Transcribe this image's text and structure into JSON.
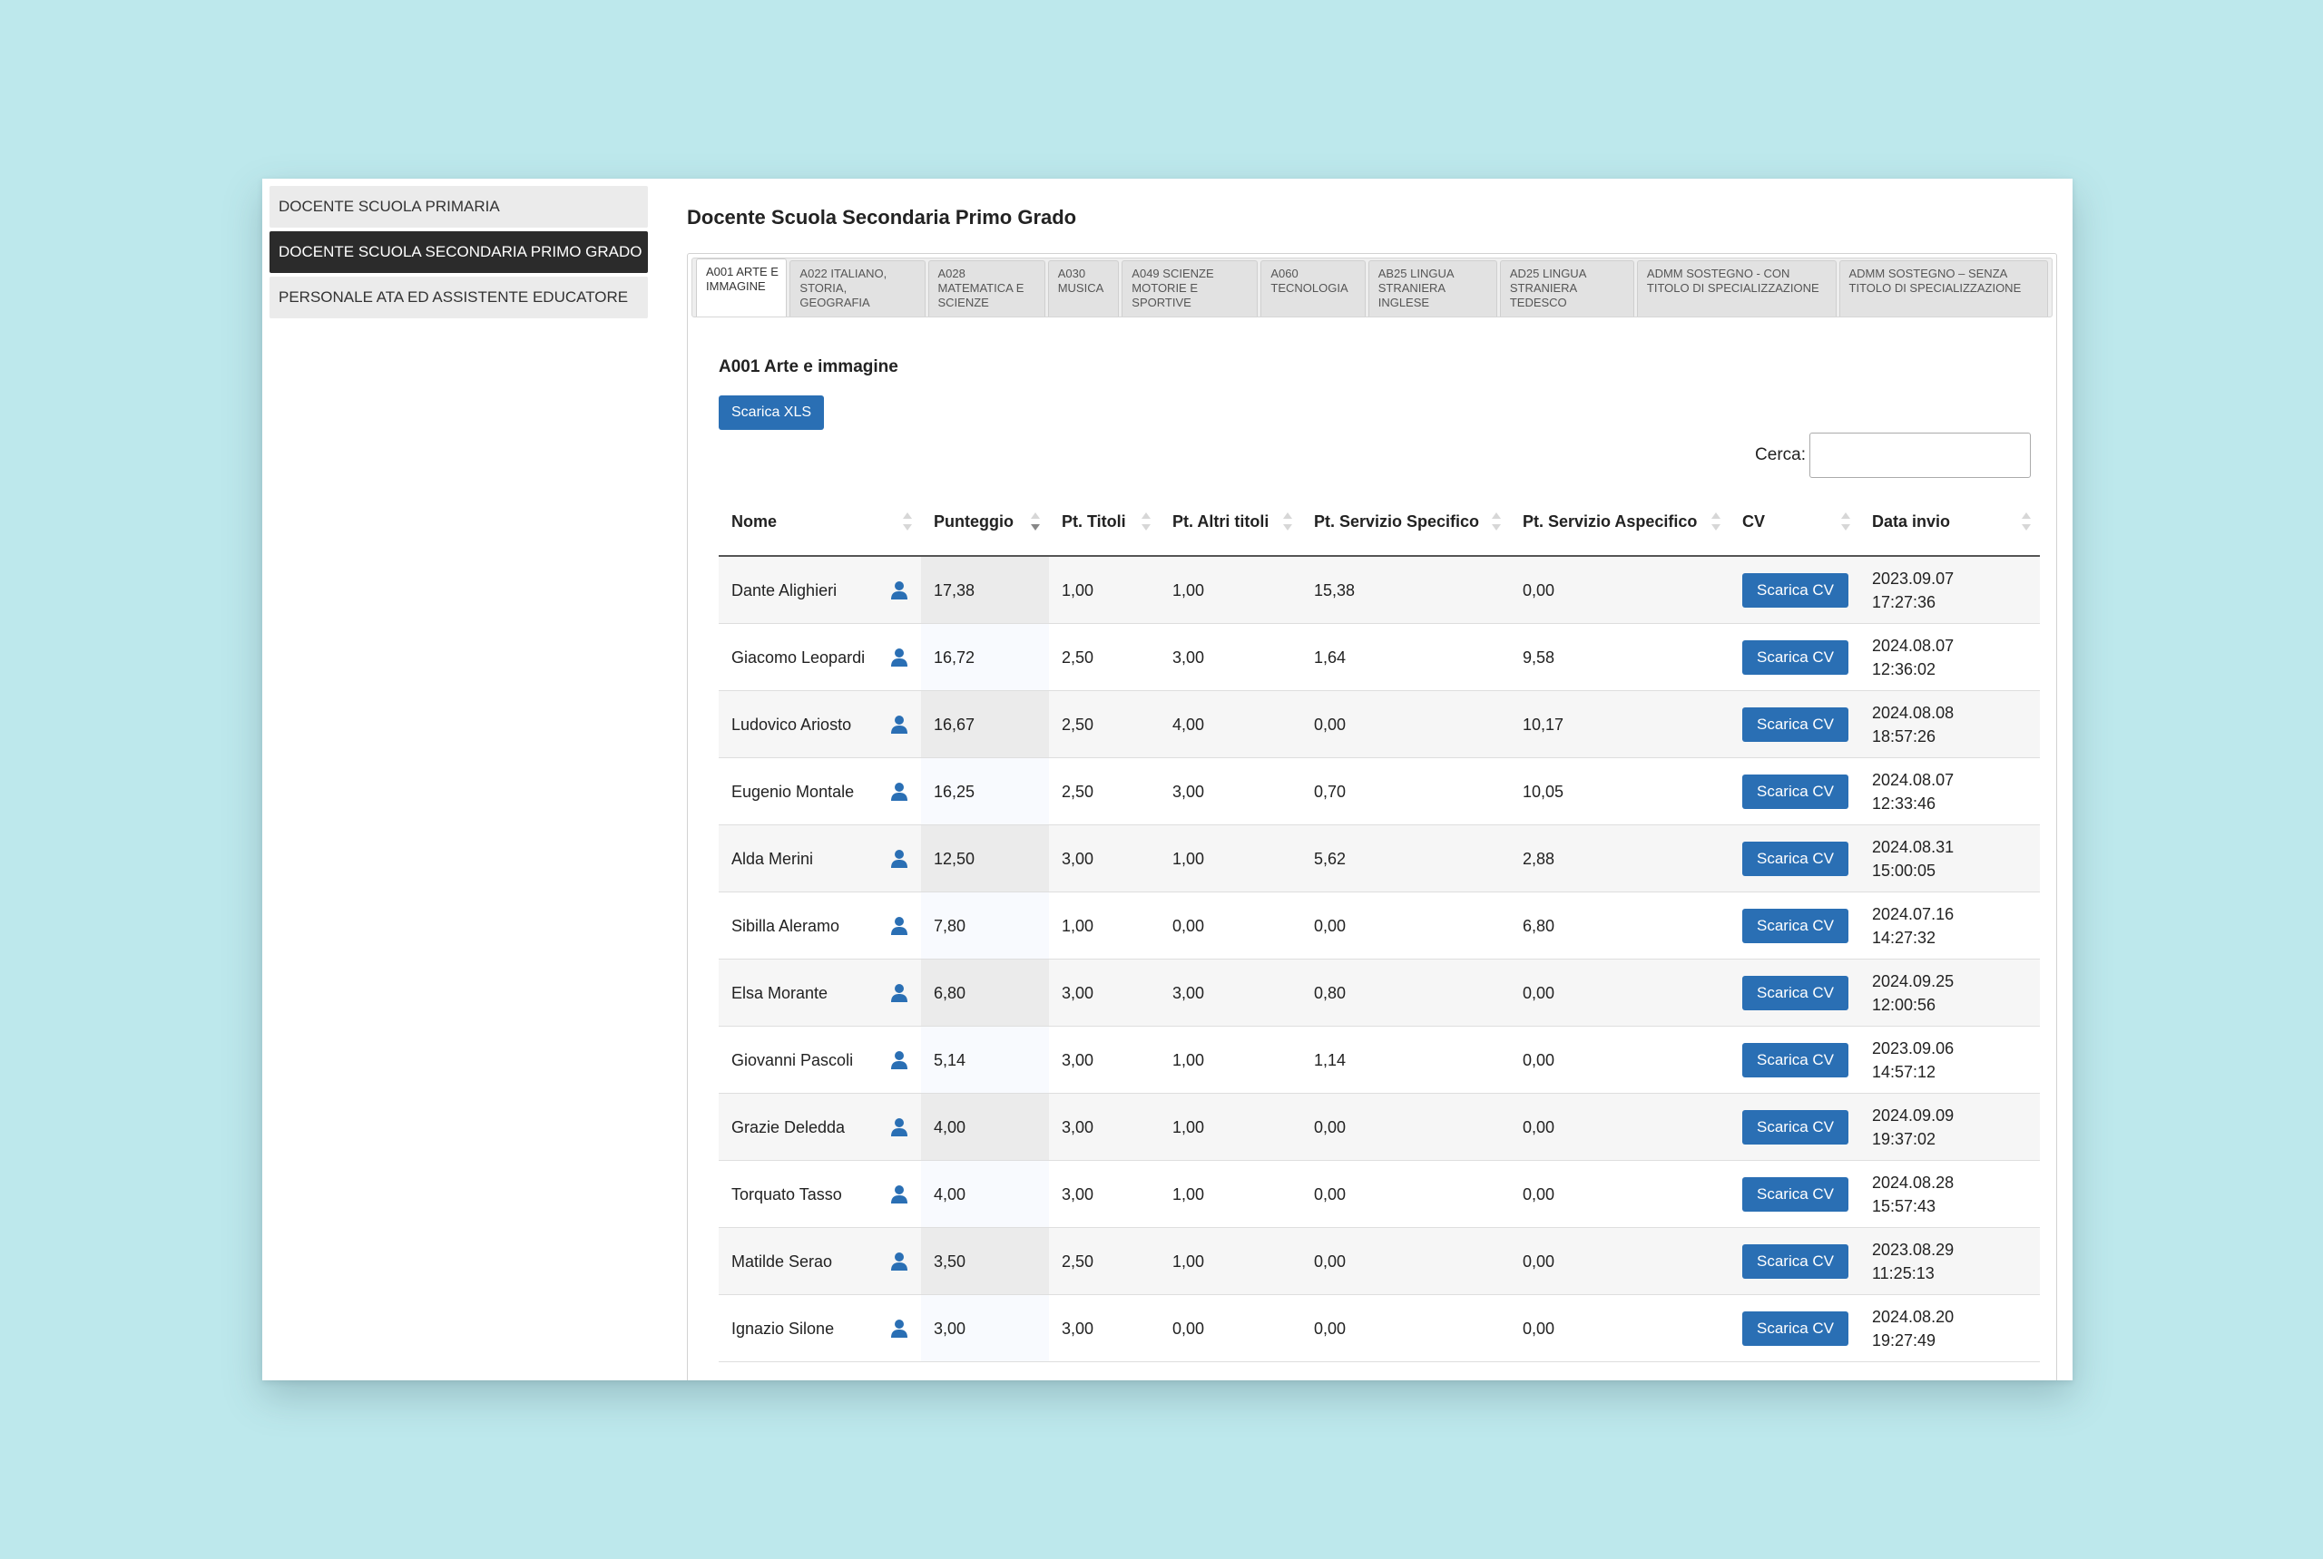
{
  "sidebar": {
    "items": [
      {
        "label": "DOCENTE SCUOLA PRIMARIA"
      },
      {
        "label": "DOCENTE SCUOLA SECONDARIA PRIMO GRADO"
      },
      {
        "label": "PERSONALE ATA ED ASSISTENTE EDUCATORE"
      }
    ],
    "active_index": 1
  },
  "page_title": "Docente Scuola Secondaria Primo Grado",
  "tabs": [
    {
      "label": "A001 Arte e immagine"
    },
    {
      "label": "A022 Italiano, storia, geografia"
    },
    {
      "label": "A028 Matematica e scienze"
    },
    {
      "label": "A030 Musica"
    },
    {
      "label": "A049 Scienze motorie e sportive"
    },
    {
      "label": "A060 Tecnologia"
    },
    {
      "label": "AB25 Lingua straniera inglese"
    },
    {
      "label": "AD25 Lingua straniera tedesco"
    },
    {
      "label": "ADMM Sostegno - con titolo di specializzazione"
    },
    {
      "label": "ADMM Sostegno – senza titolo di specializzazione"
    }
  ],
  "panel": {
    "title": "A001 Arte e immagine",
    "download_xls_label": "Scarica XLS",
    "search_label": "Cerca:",
    "search_value": ""
  },
  "table": {
    "columns": [
      {
        "label": "Nome",
        "sort": "none"
      },
      {
        "label": "Punteggio",
        "sort": "desc"
      },
      {
        "label": "Pt. Titoli",
        "sort": "none"
      },
      {
        "label": "Pt. Altri titoli",
        "sort": "none"
      },
      {
        "label": "Pt. Servizio Specifico",
        "sort": "none"
      },
      {
        "label": "Pt. Servizio Aspecifico",
        "sort": "none"
      },
      {
        "label": "CV",
        "sort": "none"
      },
      {
        "label": "Data invio",
        "sort": "none"
      }
    ],
    "cv_button_label": "Scarica CV",
    "icon": "user-icon",
    "rows": [
      {
        "nome": "Dante Alighieri",
        "punteggio": "17,38",
        "titoli": "1,00",
        "altri": "1,00",
        "specifico": "15,38",
        "aspecifico": "0,00",
        "data": "2023.09.07\n17:27:36"
      },
      {
        "nome": "Giacomo Leopardi",
        "punteggio": "16,72",
        "titoli": "2,50",
        "altri": "3,00",
        "specifico": "1,64",
        "aspecifico": "9,58",
        "data": "2024.08.07\n12:36:02"
      },
      {
        "nome": "Ludovico Ariosto",
        "punteggio": "16,67",
        "titoli": "2,50",
        "altri": "4,00",
        "specifico": "0,00",
        "aspecifico": "10,17",
        "data": "2024.08.08\n18:57:26"
      },
      {
        "nome": "Eugenio Montale",
        "punteggio": "16,25",
        "titoli": "2,50",
        "altri": "3,00",
        "specifico": "0,70",
        "aspecifico": "10,05",
        "data": "2024.08.07\n12:33:46"
      },
      {
        "nome": "Alda Merini",
        "punteggio": "12,50",
        "titoli": "3,00",
        "altri": "1,00",
        "specifico": "5,62",
        "aspecifico": "2,88",
        "data": "2024.08.31\n15:00:05"
      },
      {
        "nome": "Sibilla Aleramo",
        "punteggio": "7,80",
        "titoli": "1,00",
        "altri": "0,00",
        "specifico": "0,00",
        "aspecifico": "6,80",
        "data": "2024.07.16\n14:27:32"
      },
      {
        "nome": "Elsa Morante",
        "punteggio": "6,80",
        "titoli": "3,00",
        "altri": "3,00",
        "specifico": "0,80",
        "aspecifico": "0,00",
        "data": "2024.09.25\n12:00:56"
      },
      {
        "nome": "Giovanni Pascoli",
        "punteggio": "5,14",
        "titoli": "3,00",
        "altri": "1,00",
        "specifico": "1,14",
        "aspecifico": "0,00",
        "data": "2023.09.06\n14:57:12"
      },
      {
        "nome": "Grazie Deledda",
        "punteggio": "4,00",
        "titoli": "3,00",
        "altri": "1,00",
        "specifico": "0,00",
        "aspecifico": "0,00",
        "data": "2024.09.09\n19:37:02"
      },
      {
        "nome": "Torquato Tasso",
        "punteggio": "4,00",
        "titoli": "3,00",
        "altri": "1,00",
        "specifico": "0,00",
        "aspecifico": "0,00",
        "data": "2024.08.28\n15:57:43"
      },
      {
        "nome": "Matilde Serao",
        "punteggio": "3,50",
        "titoli": "2,50",
        "altri": "1,00",
        "specifico": "0,00",
        "aspecifico": "0,00",
        "data": "2023.08.29\n11:25:13"
      },
      {
        "nome": "Ignazio Silone",
        "punteggio": "3,00",
        "titoli": "3,00",
        "altri": "0,00",
        "specifico": "0,00",
        "aspecifico": "0,00",
        "data": "2024.08.20\n19:27:49"
      }
    ]
  },
  "colors": {
    "background": "#bde8ec",
    "accent": "#2a6fb4",
    "active_sidebar": "#2b2b2b"
  }
}
